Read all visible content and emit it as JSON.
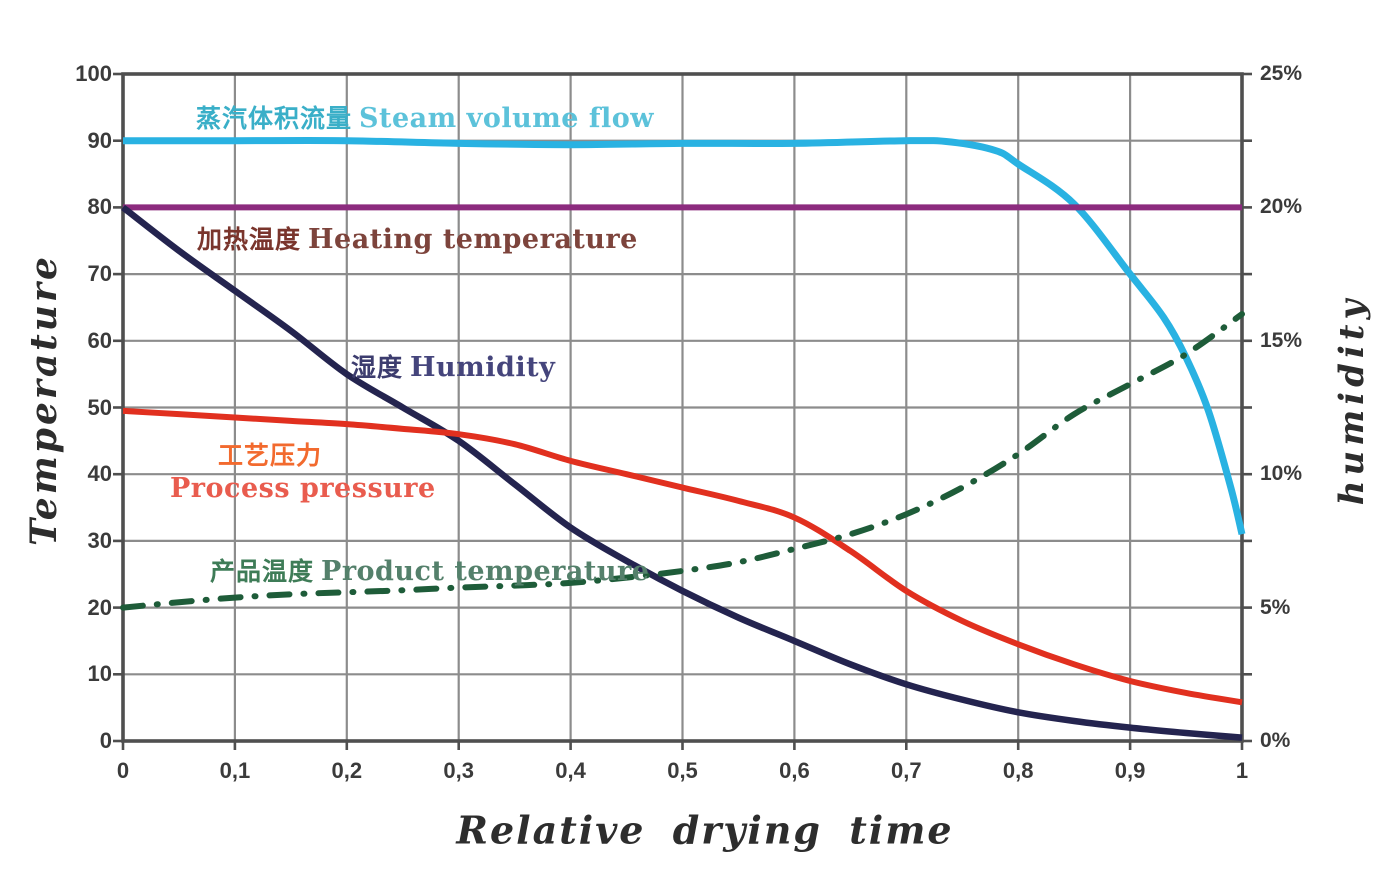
{
  "chart_data": {
    "type": "line",
    "xlabel": "Relative drying time",
    "ylabel_left": "Temperature",
    "ylabel_right": "humidity",
    "x_range": [
      0,
      1
    ],
    "y_range_left": [
      0,
      100
    ],
    "y_range_right_percent": [
      0,
      25
    ],
    "right_axis_mapping": "humidity_percent = temperature_axis_value / 4",
    "grid": true,
    "legend_position": "labels-inline-on-chart",
    "x_ticks": [
      "0",
      "0,1",
      "0,2",
      "0,3",
      "0,4",
      "0,5",
      "0,6",
      "0,7",
      "0,8",
      "0,9",
      "1"
    ],
    "y_ticks_left": [
      "100",
      "90",
      "80",
      "70",
      "60",
      "50",
      "40",
      "30",
      "20",
      "10",
      "0"
    ],
    "y_ticks_right": [
      "25%",
      "20%",
      "15%",
      "10%",
      "5%",
      "0%"
    ],
    "colors": {
      "grid": "#8c8c8c",
      "axis_border": "#4f4f4f",
      "tick_text": "#3b3b3b",
      "axis_title_text": "#2d2d2d"
    },
    "series": [
      {
        "id": "steam_volume_flow",
        "label_zh": "蒸汽体积流量",
        "label_en": "Steam volume flow",
        "color": "#29b2e2",
        "label_color_zh": "#3aafc8",
        "label_color_en": "#5cc2da",
        "line_style": "solid",
        "points": [
          [
            0,
            90
          ],
          [
            0.1,
            90
          ],
          [
            0.2,
            90
          ],
          [
            0.3,
            89.6
          ],
          [
            0.4,
            89.4
          ],
          [
            0.5,
            89.6
          ],
          [
            0.6,
            89.6
          ],
          [
            0.7,
            90
          ],
          [
            0.74,
            89.8
          ],
          [
            0.78,
            88.5
          ],
          [
            0.8,
            86.5
          ],
          [
            0.85,
            80.5
          ],
          [
            0.9,
            70
          ],
          [
            0.93,
            63.5
          ],
          [
            0.95,
            57.5
          ],
          [
            0.97,
            49.5
          ],
          [
            0.99,
            38
          ],
          [
            1,
            31
          ]
        ]
      },
      {
        "id": "heating_temperature",
        "label_zh": "加热温度",
        "label_en": "Heating temperature",
        "color": "#8c2b7e",
        "label_color_zh": "#7a352c",
        "label_color_en": "#7d443c",
        "line_style": "solid",
        "points": [
          [
            0,
            80
          ],
          [
            0.5,
            80
          ],
          [
            1,
            80
          ]
        ]
      },
      {
        "id": "humidity",
        "label_zh": "湿度",
        "label_en": "Humidity",
        "color": "#24244f",
        "label_color_zh": "#3c3c6e",
        "label_color_en": "#45457c",
        "line_style": "solid",
        "points": [
          [
            0,
            80
          ],
          [
            0.05,
            73.5
          ],
          [
            0.1,
            67.5
          ],
          [
            0.15,
            61.5
          ],
          [
            0.2,
            55
          ],
          [
            0.25,
            50
          ],
          [
            0.3,
            45
          ],
          [
            0.35,
            38.5
          ],
          [
            0.4,
            32
          ],
          [
            0.45,
            27
          ],
          [
            0.5,
            22.5
          ],
          [
            0.55,
            18.5
          ],
          [
            0.6,
            15
          ],
          [
            0.65,
            11.5
          ],
          [
            0.7,
            8.5
          ],
          [
            0.75,
            6.2
          ],
          [
            0.8,
            4.3
          ],
          [
            0.85,
            3
          ],
          [
            0.9,
            2
          ],
          [
            0.95,
            1.2
          ],
          [
            1,
            0.5
          ]
        ]
      },
      {
        "id": "process_pressure",
        "label_zh": "工艺压力",
        "label_en": "Process pressure",
        "color": "#e1301f",
        "label_color_zh": "#f26a2e",
        "label_color_en": "#e95c4e",
        "line_style": "solid",
        "points": [
          [
            0,
            49.5
          ],
          [
            0.05,
            49
          ],
          [
            0.1,
            48.5
          ],
          [
            0.15,
            48
          ],
          [
            0.2,
            47.5
          ],
          [
            0.25,
            46.8
          ],
          [
            0.3,
            46
          ],
          [
            0.35,
            44.5
          ],
          [
            0.4,
            42
          ],
          [
            0.45,
            40
          ],
          [
            0.5,
            38
          ],
          [
            0.55,
            36
          ],
          [
            0.6,
            33.5
          ],
          [
            0.65,
            28.5
          ],
          [
            0.7,
            22.5
          ],
          [
            0.75,
            18
          ],
          [
            0.8,
            14.5
          ],
          [
            0.85,
            11.5
          ],
          [
            0.9,
            9
          ],
          [
            0.95,
            7.2
          ],
          [
            1,
            5.8
          ]
        ]
      },
      {
        "id": "product_temperature",
        "label_zh": "产品温度",
        "label_en": "Product temperature",
        "color": "#1e5c39",
        "label_color_zh": "#3e7c57",
        "label_color_en": "#54806b",
        "line_style": "dash-dot",
        "points": [
          [
            0,
            20
          ],
          [
            0.05,
            20.8
          ],
          [
            0.1,
            21.5
          ],
          [
            0.15,
            22
          ],
          [
            0.2,
            22.3
          ],
          [
            0.25,
            22.6
          ],
          [
            0.3,
            23
          ],
          [
            0.35,
            23.3
          ],
          [
            0.4,
            23.7
          ],
          [
            0.45,
            24.5
          ],
          [
            0.5,
            25.5
          ],
          [
            0.55,
            26.8
          ],
          [
            0.6,
            28.8
          ],
          [
            0.65,
            31
          ],
          [
            0.7,
            34
          ],
          [
            0.75,
            38
          ],
          [
            0.8,
            43
          ],
          [
            0.85,
            49
          ],
          [
            0.9,
            53.5
          ],
          [
            0.95,
            58
          ],
          [
            1,
            64
          ]
        ]
      }
    ]
  }
}
